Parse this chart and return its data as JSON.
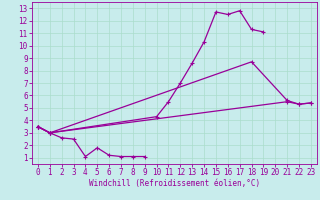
{
  "xlabel": "Windchill (Refroidissement éolien,°C)",
  "background_color": "#c8ecec",
  "line_color": "#990099",
  "grid_color": "#aaddcc",
  "xlim": [
    -0.5,
    23.5
  ],
  "ylim": [
    0.5,
    13.5
  ],
  "xticks": [
    0,
    1,
    2,
    3,
    4,
    5,
    6,
    7,
    8,
    9,
    10,
    11,
    12,
    13,
    14,
    15,
    16,
    17,
    18,
    19,
    20,
    21,
    22,
    23
  ],
  "yticks": [
    1,
    2,
    3,
    4,
    5,
    6,
    7,
    8,
    9,
    10,
    11,
    12,
    13
  ],
  "line1_x": [
    0,
    1,
    2,
    3,
    4,
    5,
    6,
    7,
    8,
    9
  ],
  "line1_y": [
    3.5,
    3.0,
    2.6,
    2.5,
    1.1,
    1.8,
    1.2,
    1.1,
    1.1,
    1.1
  ],
  "line2_x": [
    0,
    1,
    10,
    11,
    12,
    13,
    14,
    15,
    16,
    17,
    18,
    19
  ],
  "line2_y": [
    3.5,
    3.0,
    4.3,
    5.5,
    7.0,
    8.6,
    10.3,
    12.7,
    12.5,
    12.8,
    11.3,
    11.1
  ],
  "line3_x": [
    0,
    1,
    18,
    21,
    22,
    23
  ],
  "line3_y": [
    3.5,
    3.0,
    8.7,
    5.6,
    5.3,
    5.4
  ],
  "line4_x": [
    0,
    1,
    21,
    22,
    23
  ],
  "line4_y": [
    3.5,
    3.0,
    5.5,
    5.3,
    5.4
  ],
  "tick_fontsize": 5.5,
  "xlabel_fontsize": 5.5,
  "marker_size": 3.5,
  "line_width": 0.9
}
